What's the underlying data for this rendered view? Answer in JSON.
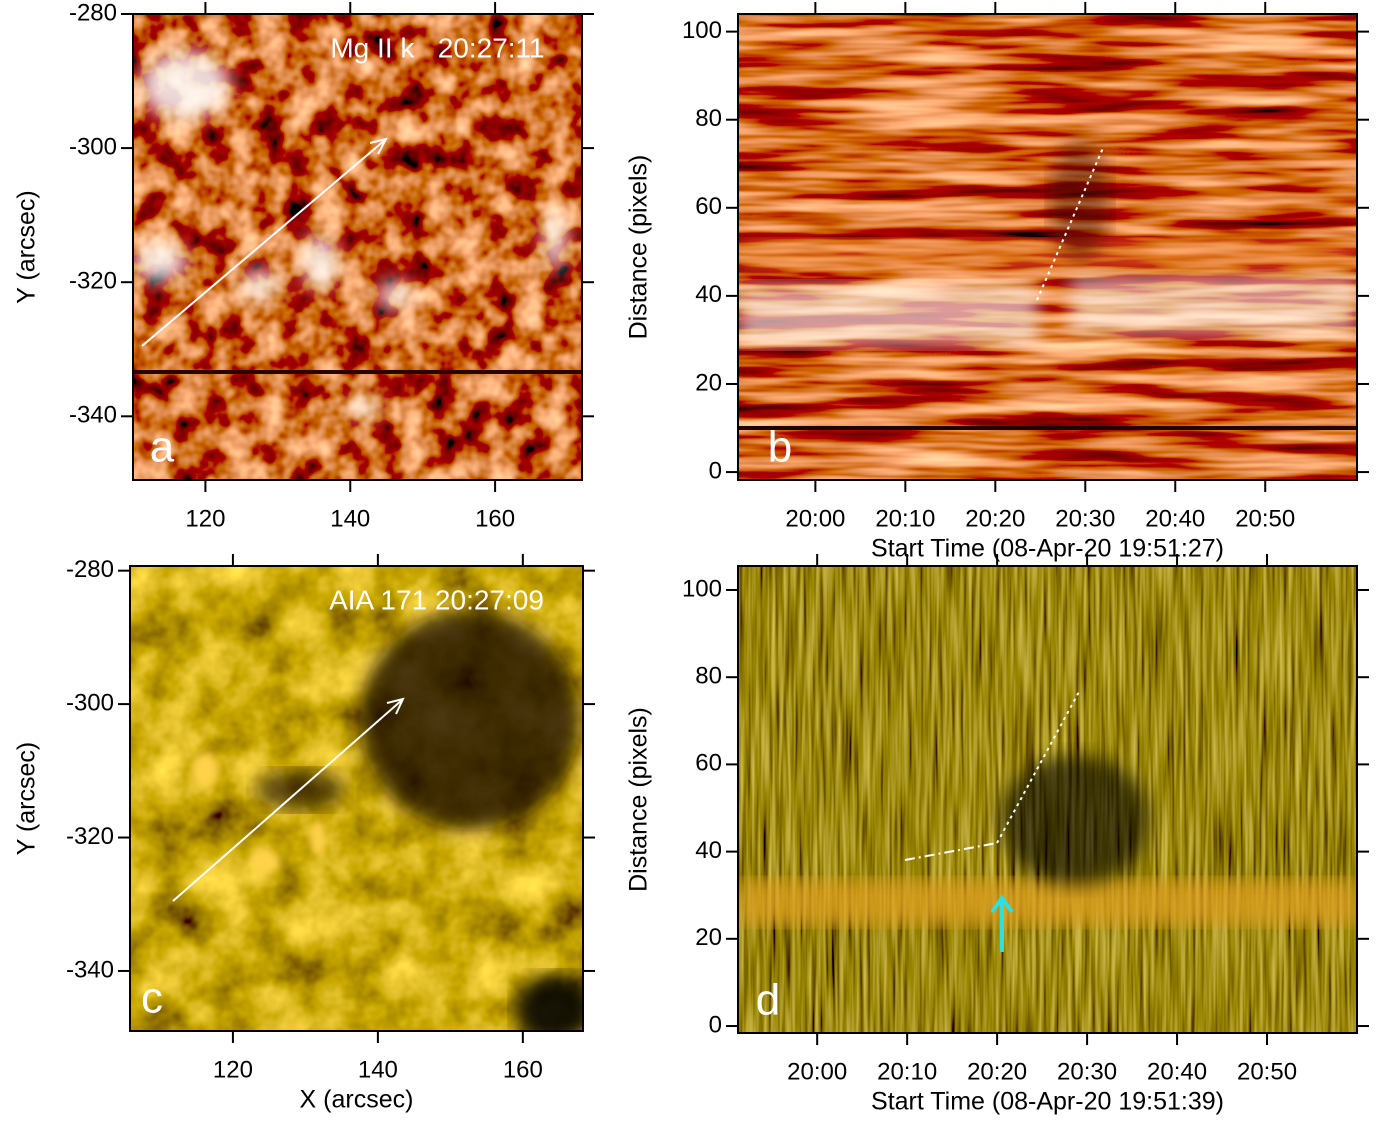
{
  "chart_data": [
    {
      "type": "image",
      "panel": "a",
      "annotation": "Mg II k   20:27:11",
      "colormap": "red",
      "xlim": [
        110,
        172
      ],
      "ylim": [
        -349.5,
        -280
      ],
      "xticks": [
        120,
        140,
        160
      ],
      "yticks": [
        -280,
        -300,
        -320,
        -340
      ],
      "ylabel": "Y (arcsec)"
    },
    {
      "type": "image",
      "panel": "b",
      "colormap": "red-streak",
      "xlim": [
        1191.4,
        1260.2
      ],
      "ylim": [
        -1.8,
        104
      ],
      "xticks": [
        {
          "value": 1200,
          "label": "20:00"
        },
        {
          "value": 1210,
          "label": "20:10"
        },
        {
          "value": 1220,
          "label": "20:20"
        },
        {
          "value": 1230,
          "label": "20:30"
        },
        {
          "value": 1240,
          "label": "20:40"
        },
        {
          "value": 1250,
          "label": "20:50"
        }
      ],
      "yticks": [
        0,
        20,
        40,
        60,
        80,
        100
      ],
      "xlabel": "Start Time (08-Apr-20 19:51:27)",
      "ylabel": "Distance (pixels)"
    },
    {
      "type": "image",
      "panel": "c",
      "annotation": "AIA 171 20:27:09",
      "colormap": "gold",
      "xlim": [
        105.8,
        168.3
      ],
      "ylim": [
        -349,
        -279.3
      ],
      "xticks": [
        120,
        140,
        160
      ],
      "yticks": [
        -280,
        -300,
        -320,
        -340
      ],
      "xlabel": "X (arcsec)",
      "ylabel": "Y (arcsec)"
    },
    {
      "type": "image",
      "panel": "d",
      "colormap": "gold-dark",
      "xlim": [
        1191.2,
        1260
      ],
      "ylim": [
        -1.6,
        105.5
      ],
      "xticks": [
        {
          "value": 1200,
          "label": "20:00"
        },
        {
          "value": 1210,
          "label": "20:10"
        },
        {
          "value": 1220,
          "label": "20:20"
        },
        {
          "value": 1230,
          "label": "20:30"
        },
        {
          "value": 1240,
          "label": "20:40"
        },
        {
          "value": 1250,
          "label": "20:50"
        }
      ],
      "yticks": [
        0,
        20,
        40,
        60,
        80,
        100
      ],
      "xlabel": "Start Time (08-Apr-20 19:51:39)",
      "ylabel": "Distance (pixels)"
    }
  ]
}
